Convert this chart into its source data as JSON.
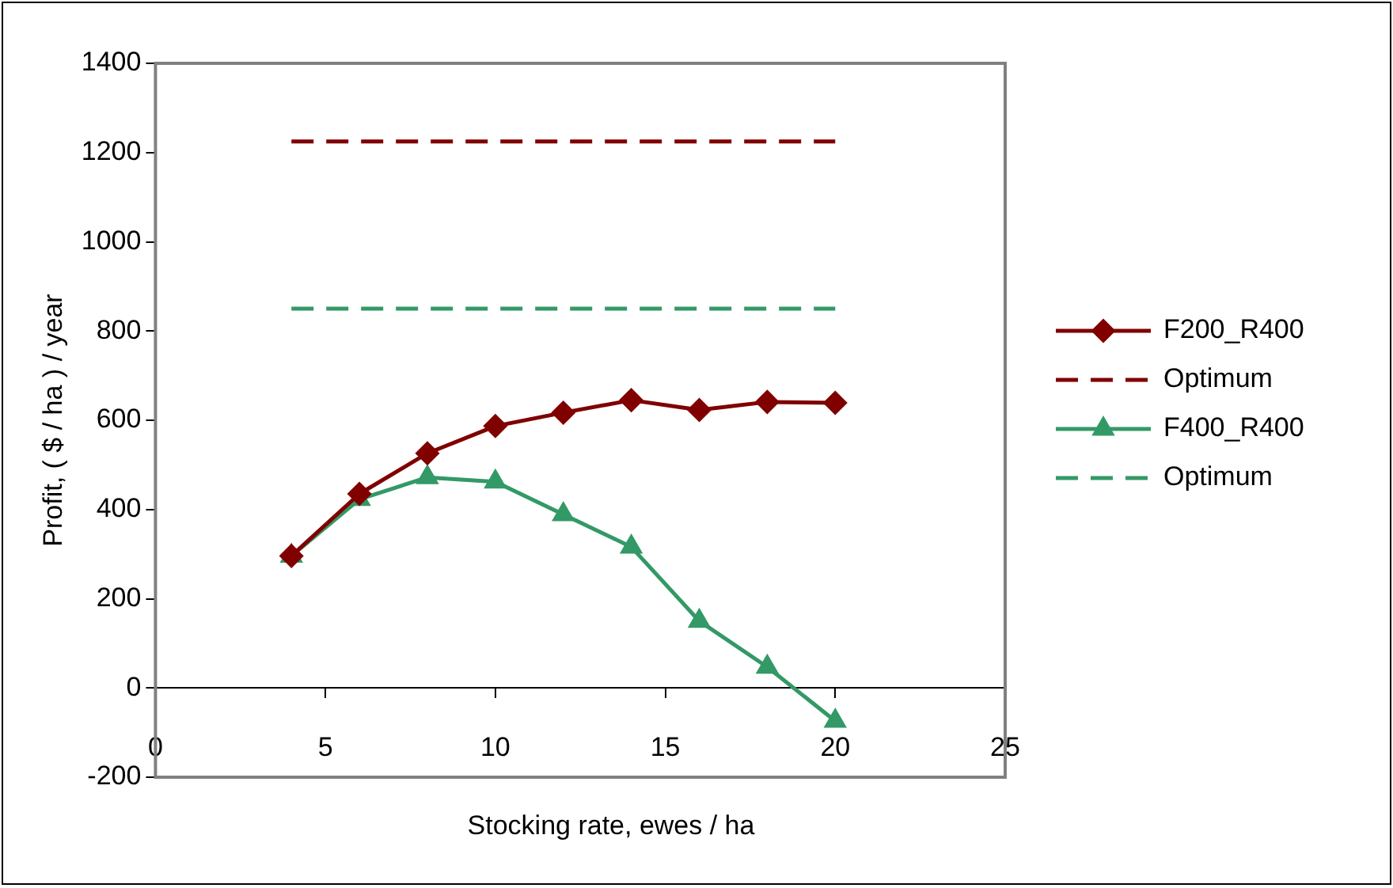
{
  "chart_data": {
    "type": "line",
    "xlabel": "Stocking rate, ewes / ha",
    "ylabel": "Profit, ( $ / ha ) / year",
    "xlim": [
      0,
      25
    ],
    "xticks": [
      0,
      5,
      10,
      15,
      20,
      25
    ],
    "ylim": [
      -200,
      1400
    ],
    "yticks": [
      -200,
      0,
      200,
      400,
      600,
      800,
      1000,
      1200,
      1400
    ],
    "legend": "right",
    "series": [
      {
        "name": "F200_R400",
        "color": "#800000",
        "marker": "diamond",
        "line_style": "solid",
        "x": [
          4,
          6,
          8,
          10,
          12,
          14,
          16,
          18,
          20
        ],
        "values": [
          296,
          435,
          526,
          587,
          617,
          645,
          623,
          641,
          639
        ]
      },
      {
        "name": "Optimum",
        "color": "#800000",
        "marker": "none",
        "line_style": "dashed",
        "x": [
          4,
          20
        ],
        "values": [
          1225,
          1225
        ]
      },
      {
        "name": "F400_R400",
        "color": "#339966",
        "marker": "triangle",
        "line_style": "solid",
        "x": [
          4,
          6,
          8,
          10,
          12,
          14,
          16,
          18,
          20
        ],
        "values": [
          296,
          423,
          472,
          462,
          389,
          316,
          150,
          47,
          -74
        ]
      },
      {
        "name": "Optimum",
        "color": "#339966",
        "marker": "none",
        "line_style": "dashed",
        "x": [
          4,
          20
        ],
        "values": [
          850,
          850
        ]
      }
    ]
  }
}
